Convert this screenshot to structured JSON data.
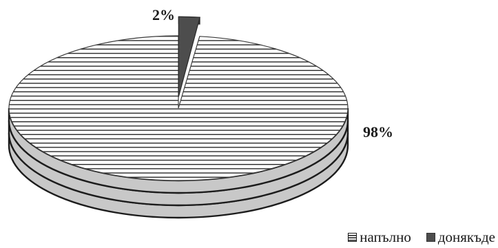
{
  "chart_data": {
    "type": "pie",
    "title": "",
    "series": [
      {
        "name": "напълно",
        "value": 98,
        "label": "98%"
      },
      {
        "name": "донякъде",
        "value": 2,
        "label": "2%"
      }
    ],
    "style": "3d-exploded",
    "legend_position": "bottom-right",
    "colors": {
      "напълно_fill": "#ffffff",
      "напълно_stripe": "#2a2a2a",
      "донякъде_fill": "#4d4d4d",
      "edge_fill": "#c8c8c8",
      "edge_line": "#1c1c1c"
    }
  },
  "legend": {
    "items": [
      {
        "label": "напълно",
        "swatch": "striped"
      },
      {
        "label": "донякъде",
        "swatch": "solid-dark"
      }
    ]
  }
}
